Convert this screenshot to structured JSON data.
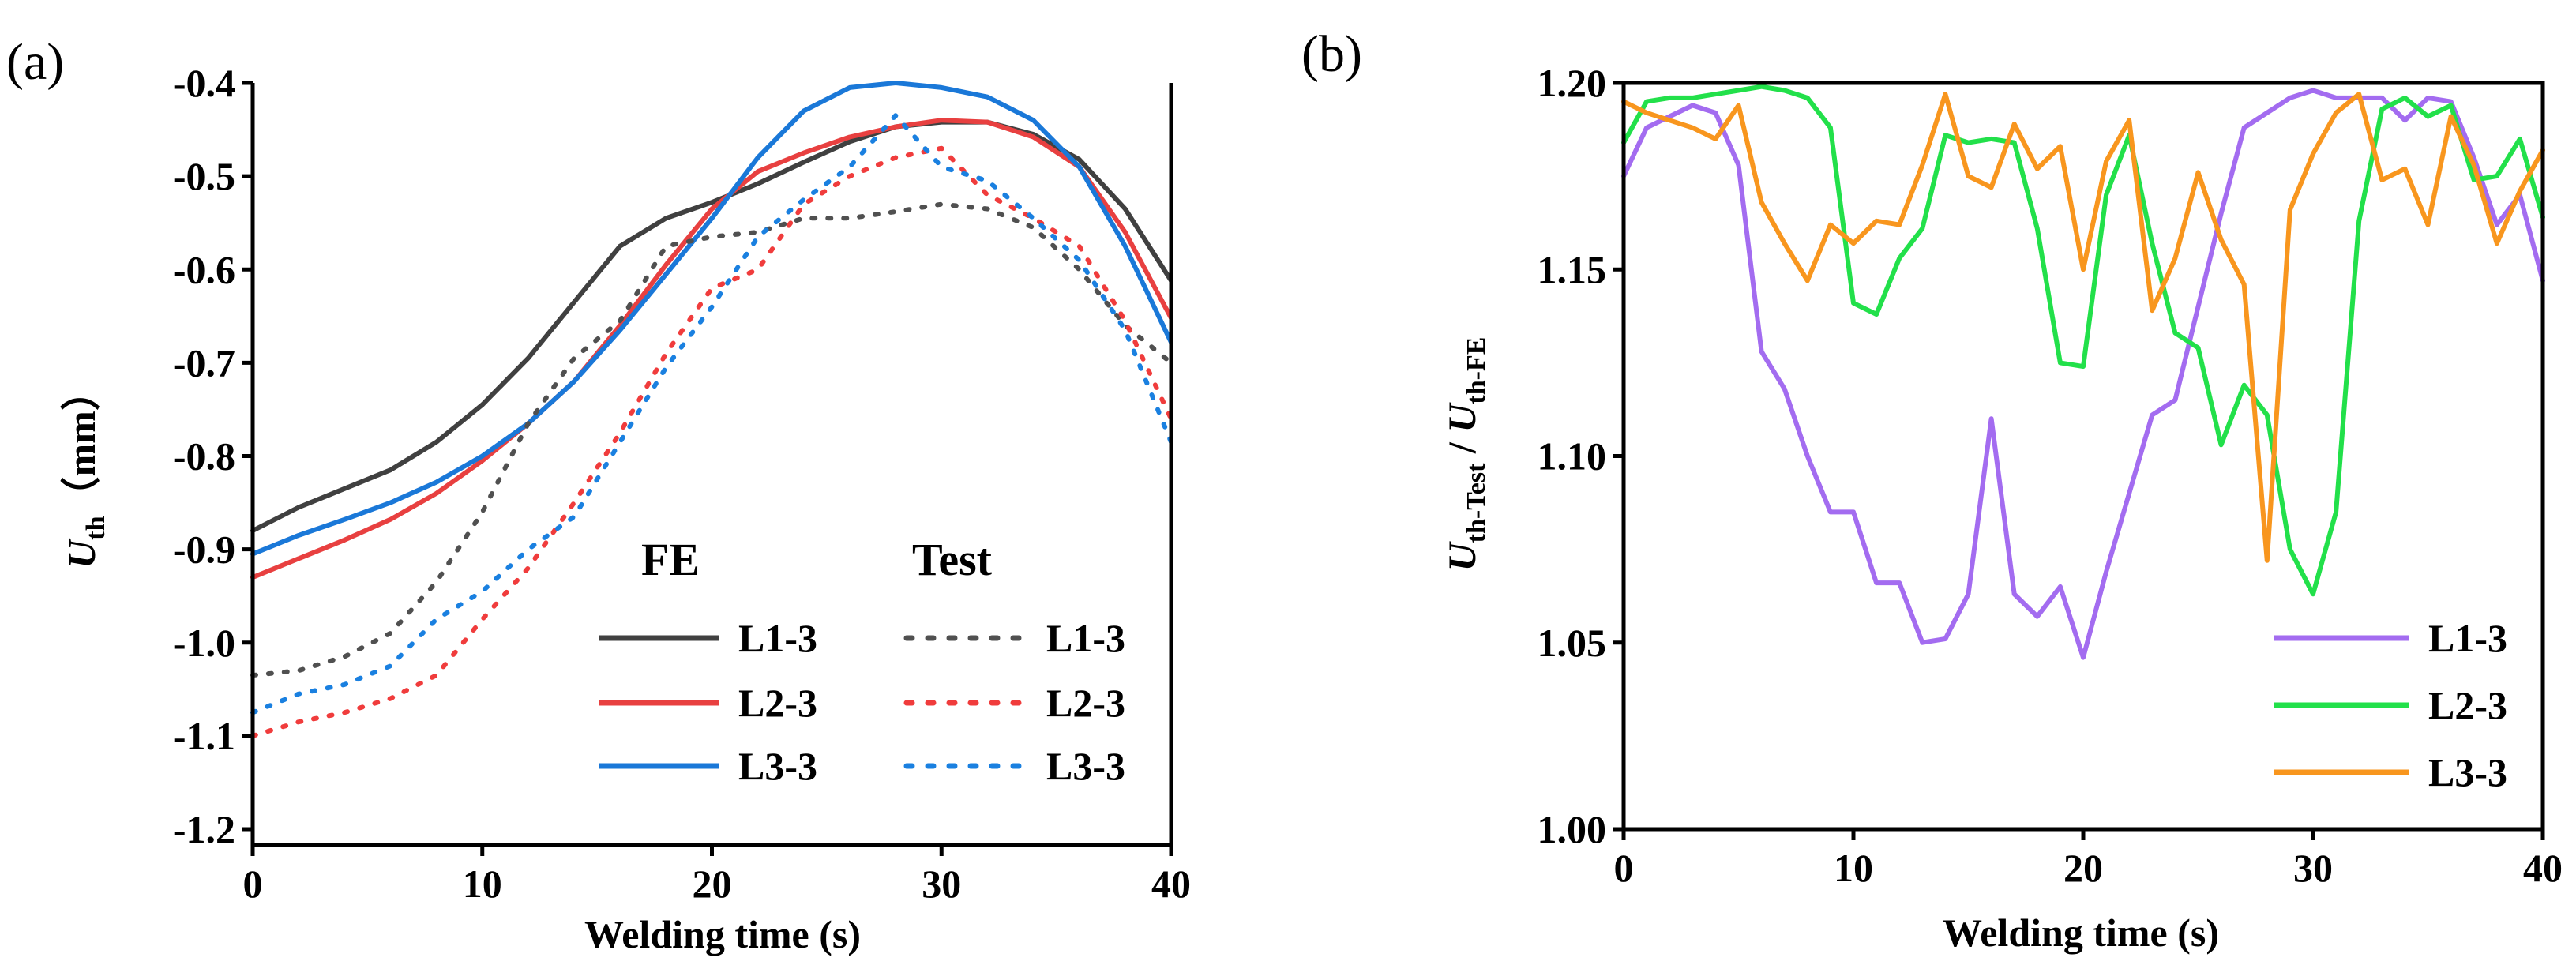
{
  "chart_data": [
    {
      "panel_label": "(a)",
      "type": "line",
      "xlabel": "Welding time (s)",
      "ylabel": {
        "main": "U",
        "sub": "th",
        "unit": "（mm）"
      },
      "xlim": [
        0,
        40
      ],
      "ylim": [
        -1.2,
        -0.4
      ],
      "xticks": [
        0,
        10,
        20,
        30,
        40
      ],
      "xtick_labels": [
        "0",
        "10",
        "20",
        "30",
        "40"
      ],
      "yticks": [
        -1.2,
        -1.1,
        -1.0,
        -0.9,
        -0.8,
        -0.7,
        -0.6,
        -0.5,
        -0.4
      ],
      "ytick_labels": [
        "-1.2",
        "-1.1",
        "-1.0",
        "-0.9",
        "-0.8",
        "-0.7",
        "-0.6",
        "-0.5",
        "-0.4"
      ],
      "legend": {
        "placement": "bottom-right",
        "group_titles": [
          "FE",
          "Test"
        ],
        "fe_labels": [
          "L1-3",
          "L2-3",
          "L3-3"
        ],
        "test_labels": [
          "L1-3",
          "L2-3",
          "L3-3"
        ]
      },
      "series": [
        {
          "name": "FE L1-3",
          "color": "#404040",
          "style": "solid",
          "x": [
            0,
            2,
            4,
            6,
            8,
            10,
            12,
            14,
            16,
            18,
            20,
            22,
            24,
            26,
            28,
            30,
            32,
            34,
            36,
            38,
            40
          ],
          "y": [
            -0.88,
            -0.855,
            -0.835,
            -0.815,
            -0.785,
            -0.745,
            -0.695,
            -0.635,
            -0.575,
            -0.545,
            -0.528,
            -0.508,
            -0.485,
            -0.463,
            -0.447,
            -0.442,
            -0.442,
            -0.455,
            -0.482,
            -0.535,
            -0.612
          ]
        },
        {
          "name": "FE L2-3",
          "color": "#e84040",
          "style": "solid",
          "x": [
            0,
            2,
            4,
            6,
            8,
            10,
            12,
            14,
            16,
            18,
            20,
            22,
            24,
            26,
            28,
            30,
            32,
            34,
            36,
            38,
            40
          ],
          "y": [
            -0.93,
            -0.91,
            -0.89,
            -0.868,
            -0.84,
            -0.805,
            -0.765,
            -0.72,
            -0.66,
            -0.595,
            -0.535,
            -0.495,
            -0.475,
            -0.458,
            -0.447,
            -0.44,
            -0.442,
            -0.458,
            -0.49,
            -0.56,
            -0.652
          ]
        },
        {
          "name": "FE L3-3",
          "color": "#1a78d8",
          "style": "solid",
          "x": [
            0,
            2,
            4,
            6,
            8,
            10,
            12,
            14,
            16,
            18,
            20,
            22,
            24,
            26,
            28,
            30,
            32,
            34,
            36,
            38,
            40
          ],
          "y": [
            -0.905,
            -0.885,
            -0.868,
            -0.85,
            -0.828,
            -0.8,
            -0.765,
            -0.72,
            -0.665,
            -0.605,
            -0.545,
            -0.48,
            -0.43,
            -0.405,
            -0.4,
            -0.405,
            -0.415,
            -0.44,
            -0.49,
            -0.575,
            -0.678
          ]
        },
        {
          "name": "Test L1-3",
          "color": "#505050",
          "style": "dotted",
          "x": [
            0,
            2,
            4,
            6,
            8,
            10,
            12,
            14,
            16,
            18,
            20,
            22,
            24,
            26,
            28,
            30,
            32,
            34,
            36,
            38,
            40
          ],
          "y": [
            -1.035,
            -1.03,
            -1.015,
            -0.99,
            -0.935,
            -0.86,
            -0.765,
            -0.695,
            -0.655,
            -0.575,
            -0.565,
            -0.56,
            -0.545,
            -0.545,
            -0.538,
            -0.53,
            -0.535,
            -0.555,
            -0.6,
            -0.66,
            -0.7
          ]
        },
        {
          "name": "Test L2-3",
          "color": "#f03c3c",
          "style": "dotted",
          "x": [
            0,
            2,
            4,
            6,
            8,
            10,
            12,
            14,
            16,
            18,
            20,
            22,
            24,
            26,
            28,
            30,
            32,
            34,
            36,
            38,
            40
          ],
          "y": [
            -1.1,
            -1.085,
            -1.075,
            -1.06,
            -1.035,
            -0.975,
            -0.92,
            -0.85,
            -0.775,
            -0.69,
            -0.62,
            -0.6,
            -0.53,
            -0.5,
            -0.48,
            -0.47,
            -0.52,
            -0.545,
            -0.575,
            -0.655,
            -0.76
          ]
        },
        {
          "name": "Test L3-3",
          "color": "#1a80e0",
          "style": "dotted",
          "x": [
            0,
            2,
            4,
            6,
            8,
            10,
            12,
            14,
            16,
            18,
            20,
            22,
            24,
            26,
            28,
            30,
            32,
            34,
            36,
            38,
            40
          ],
          "y": [
            -1.075,
            -1.055,
            -1.045,
            -1.025,
            -0.975,
            -0.945,
            -0.9,
            -0.865,
            -0.785,
            -0.705,
            -0.64,
            -0.565,
            -0.525,
            -0.49,
            -0.435,
            -0.49,
            -0.505,
            -0.545,
            -0.59,
            -0.665,
            -0.785
          ]
        }
      ]
    },
    {
      "panel_label": "(b)",
      "type": "line",
      "xlabel": "Welding time (s)",
      "ylabel": {
        "num": "U",
        "num_sub": "th-Test",
        "sep": " / ",
        "den": "U",
        "den_sub": "th-FE"
      },
      "xlim": [
        0,
        40
      ],
      "ylim": [
        1.0,
        1.2
      ],
      "xticks": [
        0,
        10,
        20,
        30,
        40
      ],
      "xtick_labels": [
        "0",
        "10",
        "20",
        "30",
        "40"
      ],
      "yticks": [
        1.0,
        1.05,
        1.1,
        1.15,
        1.2
      ],
      "ytick_labels": [
        "1.00",
        "1.05",
        "1.10",
        "1.15",
        "1.20"
      ],
      "legend": {
        "placement": "bottom-right",
        "labels": [
          "L1-3",
          "L2-3",
          "L3-3"
        ]
      },
      "series": [
        {
          "name": "L1-3",
          "color": "#a36cf0",
          "style": "solid",
          "x": [
            0,
            1,
            2,
            3,
            4,
            5,
            6,
            7,
            8,
            9,
            10,
            11,
            12,
            13,
            14,
            15,
            16,
            17,
            18,
            19,
            20,
            21,
            22,
            23,
            24,
            25,
            26,
            27,
            28,
            29,
            30,
            31,
            32,
            33,
            34,
            35,
            36,
            37,
            38,
            39,
            40
          ],
          "y": [
            1.175,
            1.188,
            1.191,
            1.194,
            1.192,
            1.178,
            1.128,
            1.118,
            1.1,
            1.085,
            1.085,
            1.066,
            1.066,
            1.05,
            1.051,
            1.063,
            1.11,
            1.063,
            1.057,
            1.065,
            1.046,
            1.069,
            1.09,
            1.111,
            1.115,
            1.14,
            1.165,
            1.188,
            1.192,
            1.196,
            1.198,
            1.196,
            1.196,
            1.196,
            1.19,
            1.196,
            1.195,
            1.18,
            1.162,
            1.17,
            1.147
          ]
        },
        {
          "name": "L2-3",
          "color": "#22e04a",
          "style": "solid",
          "x": [
            0,
            1,
            2,
            3,
            4,
            5,
            6,
            7,
            8,
            9,
            10,
            11,
            12,
            13,
            14,
            15,
            16,
            17,
            18,
            19,
            20,
            21,
            22,
            23,
            24,
            25,
            26,
            27,
            28,
            29,
            30,
            31,
            32,
            33,
            34,
            35,
            36,
            37,
            38,
            39,
            40
          ],
          "y": [
            1.184,
            1.195,
            1.196,
            1.196,
            1.197,
            1.198,
            1.199,
            1.198,
            1.196,
            1.188,
            1.141,
            1.138,
            1.153,
            1.161,
            1.186,
            1.184,
            1.185,
            1.184,
            1.161,
            1.125,
            1.124,
            1.17,
            1.186,
            1.157,
            1.133,
            1.129,
            1.103,
            1.119,
            1.111,
            1.075,
            1.063,
            1.085,
            1.163,
            1.193,
            1.196,
            1.191,
            1.194,
            1.174,
            1.175,
            1.185,
            1.164
          ]
        },
        {
          "name": "L3-3",
          "color": "#f8961e",
          "style": "solid",
          "x": [
            0,
            1,
            2,
            3,
            4,
            5,
            6,
            7,
            8,
            9,
            10,
            11,
            12,
            13,
            14,
            15,
            16,
            17,
            18,
            19,
            20,
            21,
            22,
            23,
            24,
            25,
            26,
            27,
            28,
            29,
            30,
            31,
            32,
            33,
            34,
            35,
            36,
            37,
            38,
            39,
            40
          ],
          "y": [
            1.195,
            1.192,
            1.19,
            1.188,
            1.185,
            1.194,
            1.168,
            1.157,
            1.147,
            1.162,
            1.157,
            1.163,
            1.162,
            1.178,
            1.197,
            1.175,
            1.172,
            1.189,
            1.177,
            1.183,
            1.15,
            1.179,
            1.19,
            1.139,
            1.153,
            1.176,
            1.158,
            1.146,
            1.072,
            1.166,
            1.181,
            1.192,
            1.197,
            1.174,
            1.177,
            1.162,
            1.191,
            1.178,
            1.157,
            1.171,
            1.182
          ]
        }
      ]
    }
  ]
}
